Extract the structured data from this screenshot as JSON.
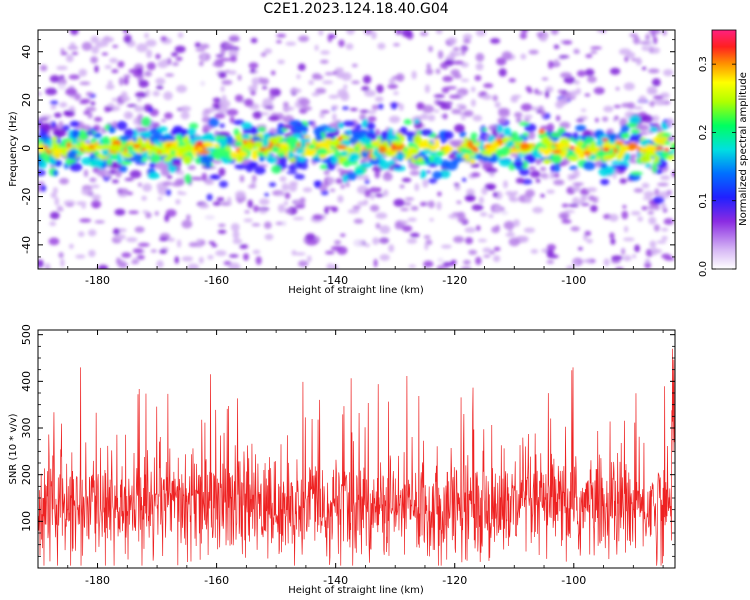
{
  "title": "C2E1.2023.124.18.40.G04",
  "chart_data": [
    {
      "type": "heatmap",
      "xlabel": "Height of straight line (km)",
      "ylabel": "Frequency (Hz)",
      "xlim": [
        -190,
        -83
      ],
      "ylim": [
        -50,
        49
      ],
      "xticks": [
        -180,
        -160,
        -140,
        -120,
        -100
      ],
      "yticks": [
        -40,
        -20,
        0,
        20,
        40
      ],
      "colorbar": {
        "label": "Normalized spectral amplitude",
        "range": [
          0,
          0.35
        ],
        "ticks": [
          0.0,
          0.1,
          0.2,
          0.3
        ]
      },
      "description_band": {
        "center_hz": 0,
        "halfwidth_hz": 10
      }
    },
    {
      "type": "line",
      "xlabel": "Height of straight line (km)",
      "ylabel": "SNR (10 * v/v)",
      "xlim": [
        -190,
        -83
      ],
      "ylim": [
        0,
        510
      ],
      "xticks": [
        -180,
        -160,
        -140,
        -120,
        -100
      ],
      "yticks": [
        100,
        200,
        300,
        400,
        500
      ],
      "series": [
        {
          "color": "#ee2222"
        }
      ]
    }
  ],
  "tick_labels": {
    "heat_x": [
      "-180",
      "-160",
      "-140",
      "-120",
      "-100"
    ],
    "heat_y": [
      "40",
      "20",
      "0",
      "-20",
      "-40"
    ],
    "snr_x": [
      "-180",
      "-160",
      "-140",
      "-120",
      "-100"
    ],
    "snr_y": [
      "500",
      "400",
      "300",
      "200",
      "100"
    ],
    "cbar": [
      "0.3",
      "0.2",
      "0.1",
      "0.0"
    ]
  }
}
